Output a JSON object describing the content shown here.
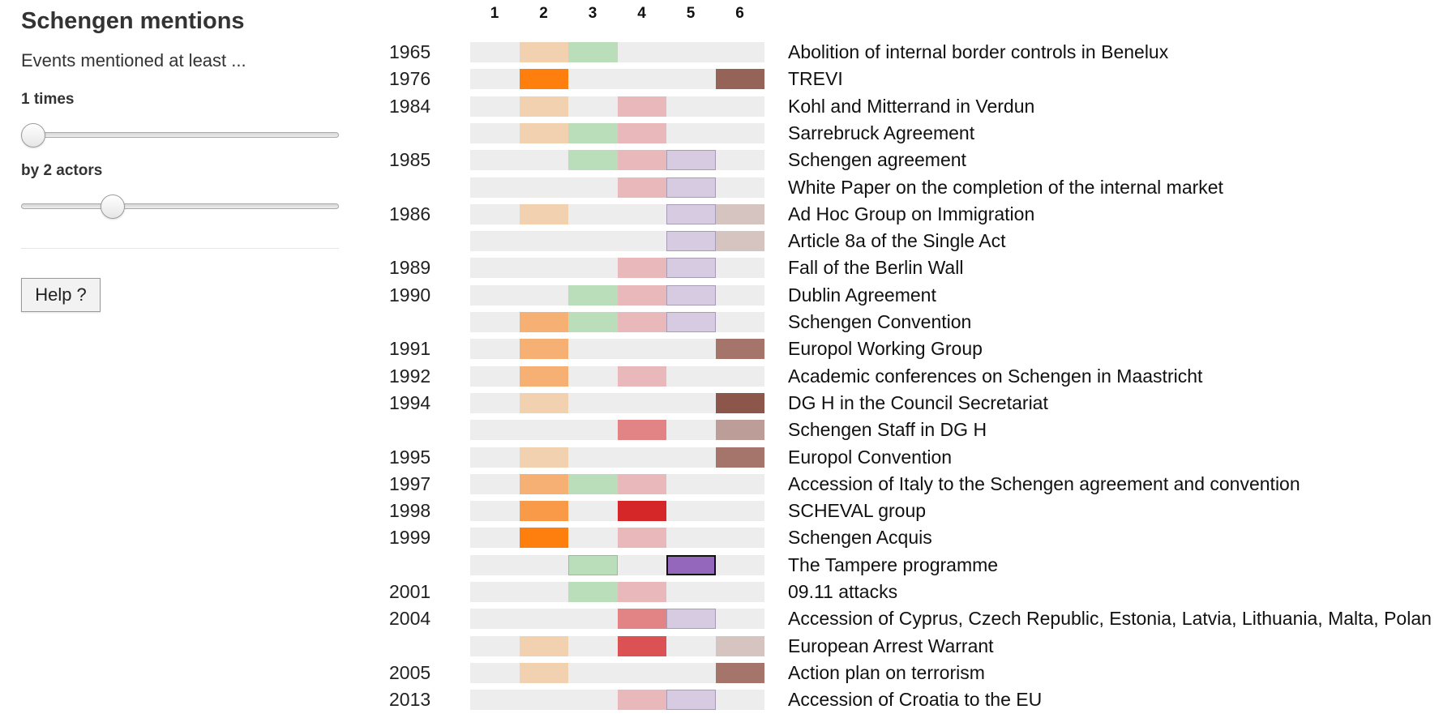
{
  "sidebar": {
    "title": "Schengen mentions",
    "subtitle": "Events mentioned at least ...",
    "times_label": "1 times",
    "times_value": 1,
    "times_position": 0,
    "actors_label": "by 2 actors",
    "actors_value": 2,
    "actors_position": 0.27,
    "help_label": "Help ?"
  },
  "columns": [
    "1",
    "2",
    "3",
    "4",
    "5",
    "6"
  ],
  "rows": [
    {
      "year": "1965",
      "event": "Abolition of internal border controls in Benelux",
      "cells": [
        null,
        "#f2d1b0",
        "#badeba",
        null,
        null,
        null
      ]
    },
    {
      "year": "1976",
      "event": "TREVI",
      "cells": [
        null,
        "#ff7f0e",
        null,
        null,
        null,
        "#956358"
      ]
    },
    {
      "year": "1984",
      "event": "Kohl and Mitterrand in Verdun",
      "cells": [
        null,
        "#f2d1b0",
        null,
        "#e8b8ba",
        null,
        null
      ]
    },
    {
      "year": "",
      "event": "Sarrebruck Agreement",
      "cells": [
        null,
        "#f2d1b0",
        "#badeba",
        "#e8b8ba",
        null,
        null
      ]
    },
    {
      "year": "1985",
      "event": "Schengen agreement",
      "cells": [
        null,
        null,
        "#badeba",
        "#e8b8ba",
        "#d6cbe0",
        null
      ]
    },
    {
      "year": "",
      "event": "White Paper on the completion of the internal market",
      "cells": [
        null,
        null,
        null,
        "#e8b8ba",
        "#d6cbe0",
        null
      ]
    },
    {
      "year": "1986",
      "event": "Ad Hoc Group on Immigration",
      "cells": [
        null,
        "#f2d1b0",
        null,
        null,
        "#d6cbe0",
        "#d6c4c1"
      ]
    },
    {
      "year": "",
      "event": "Article 8a of the Single Act",
      "cells": [
        null,
        null,
        null,
        null,
        "#d6cbe0",
        "#d6c4c1"
      ]
    },
    {
      "year": "1989",
      "event": "Fall of the Berlin Wall",
      "cells": [
        null,
        null,
        null,
        "#e8b8ba",
        "#d6cbe0",
        null
      ]
    },
    {
      "year": "1990",
      "event": "Dublin Agreement",
      "cells": [
        null,
        null,
        "#badeba",
        "#e8b8ba",
        "#d6cbe0",
        null
      ]
    },
    {
      "year": "",
      "event": "Schengen Convention",
      "cells": [
        null,
        "#f7b074",
        "#badeba",
        "#e8b8ba",
        "#d6cbe0",
        null
      ]
    },
    {
      "year": "1991",
      "event": "Europol Working Group",
      "cells": [
        null,
        "#f7b074",
        null,
        null,
        null,
        "#a5756b"
      ]
    },
    {
      "year": "1992",
      "event": "Academic conferences on Schengen in Maastricht",
      "cells": [
        null,
        "#f7b074",
        null,
        "#e8b8ba",
        null,
        null
      ]
    },
    {
      "year": "1994",
      "event": "DG H in the Council Secretariat",
      "cells": [
        null,
        "#f2d1b0",
        null,
        null,
        null,
        "#8c564b"
      ]
    },
    {
      "year": "",
      "event": "Schengen Staff in DG H",
      "cells": [
        null,
        null,
        null,
        "#e28385",
        null,
        "#bd9d97"
      ]
    },
    {
      "year": "1995",
      "event": "Europol Convention",
      "cells": [
        null,
        "#f2d1b0",
        null,
        null,
        null,
        "#a5756b"
      ]
    },
    {
      "year": "1997",
      "event": "Accession of Italy to the Schengen agreement and convention",
      "cells": [
        null,
        "#f7b074",
        "#badeba",
        "#e8b8ba",
        null,
        null
      ]
    },
    {
      "year": "1998",
      "event": "SCHEVAL group",
      "cells": [
        null,
        "#f99a48",
        null,
        "#d62728",
        null,
        null
      ]
    },
    {
      "year": "1999",
      "event": "Schengen Acquis",
      "cells": [
        null,
        "#ff7f0e",
        null,
        "#e8b8ba",
        null,
        null
      ]
    },
    {
      "year": "",
      "event": "The Tampere programme",
      "cells": [
        null,
        null,
        "#badeba",
        null,
        "#9467bd",
        null
      ]
    },
    {
      "year": "2001",
      "event": "09.11 attacks",
      "cells": [
        null,
        null,
        "#badeba",
        "#e8b8ba",
        null,
        null
      ]
    },
    {
      "year": "2004",
      "event": "Accession of Cyprus, Czech Republic, Estonia, Latvia, Lithuania, Malta, Polan",
      "cells": [
        null,
        null,
        null,
        "#e28385",
        "#d6cbe0",
        null
      ]
    },
    {
      "year": "",
      "event": "European Arrest Warrant",
      "cells": [
        null,
        "#f2d1b0",
        null,
        "#dc5254",
        null,
        "#d6c4c1"
      ]
    },
    {
      "year": "2005",
      "event": "Action plan on terrorism",
      "cells": [
        null,
        "#f2d1b0",
        null,
        null,
        null,
        "#a5756b"
      ]
    },
    {
      "year": "2013",
      "event": "Accession of Croatia to the EU",
      "cells": [
        null,
        null,
        null,
        "#e8b8ba",
        "#d6cbe0",
        null
      ]
    }
  ]
}
